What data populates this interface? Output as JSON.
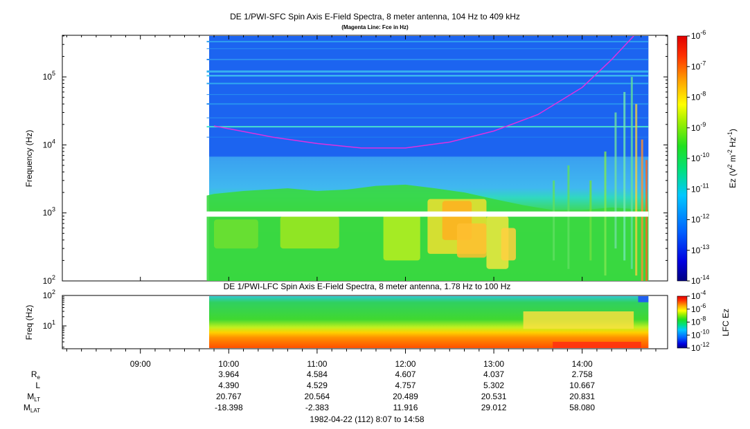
{
  "colors": {
    "blue": "#1060f0",
    "magenta": "#e030e0",
    "cyan": "#30c0f0",
    "green": "#30d030"
  },
  "chart_data": [
    {
      "type": "heatmap",
      "title": "DE 1/PWI-SFC  Spin Axis E-Field Spectra, 8 meter antenna, 104 Hz to 409 kHz",
      "subtitle": "(Magenta Line: Fce in Hz)",
      "ylabel": "Frequency (Hz)",
      "yscale": "log",
      "ylim": [
        100,
        409000
      ],
      "yticks": [
        "10^2",
        "10^3",
        "10^4",
        "10^5"
      ],
      "colorbar": {
        "label": "Ez (V^2 m^-2 Hz^-1)",
        "scale": "log",
        "range": [
          1e-14,
          1e-06
        ],
        "ticks": [
          "10^-14",
          "10^-13",
          "10^-12",
          "10^-11",
          "10^-10",
          "10^-9",
          "10^-8",
          "10^-7",
          "10^-6"
        ]
      },
      "data_start": "09:45",
      "data_end": "14:45",
      "fce_line": {
        "name": "Fce",
        "color": "#e030e0",
        "time": [
          "09:50",
          "10:30",
          "11:00",
          "11:30",
          "12:00",
          "12:30",
          "13:00",
          "13:30",
          "14:00",
          "14:20",
          "14:35"
        ],
        "freq_hz": [
          19000,
          13000,
          10500,
          9000,
          9000,
          11000,
          16000,
          28000,
          70000,
          180000,
          400000
        ]
      },
      "gap_band_hz": [
        880,
        1050
      ]
    },
    {
      "type": "heatmap",
      "title": "DE 1/PWI-LFC  Spin Axis E-Field Spectra, 8 meter antenna, 1.78 Hz to 100 Hz",
      "ylabel": "Freq (Hz)",
      "yscale": "log",
      "ylim": [
        1.78,
        100
      ],
      "yticks": [
        "10^1",
        "10^2"
      ],
      "colorbar": {
        "label": "LFC Ez",
        "scale": "log",
        "range": [
          1e-12,
          0.0001
        ],
        "ticks": [
          "10^-12",
          "10^-10",
          "10^-8",
          "10^-6",
          "10^-4"
        ]
      }
    }
  ],
  "xaxis": {
    "ticks": [
      "09:00",
      "10:00",
      "11:00",
      "12:00",
      "13:00",
      "14:00"
    ],
    "range": [
      "08:07",
      "14:58"
    ]
  },
  "ephemeris": {
    "rows": [
      {
        "label": "R",
        "sub": "e",
        "values": [
          "3.964",
          "4.584",
          "4.607",
          "4.037",
          "2.758"
        ]
      },
      {
        "label": "L",
        "sub": "",
        "values": [
          "4.390",
          "4.529",
          "4.757",
          "5.302",
          "10.667"
        ]
      },
      {
        "label": "M",
        "sub": "LT",
        "values": [
          "20.767",
          "20.564",
          "20.489",
          "20.531",
          "20.831"
        ]
      },
      {
        "label": "M",
        "sub": "LAT",
        "values": [
          "-18.398",
          "-2.383",
          "11.916",
          "29.012",
          "58.080"
        ]
      }
    ]
  },
  "footer": "1982-04-22 (112) 8:07 to 14:58"
}
